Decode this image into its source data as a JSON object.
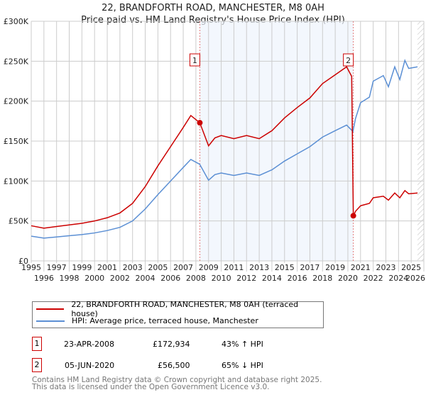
{
  "chart_data": {
    "type": "line",
    "title": "22, BRANDFORTH ROAD, MANCHESTER, M8 0AH",
    "subtitle": "Price paid vs. HM Land Registry's House Price Index (HPI)",
    "xlim": [
      1995,
      2026
    ],
    "ylim": [
      0,
      300000
    ],
    "x_ticks": [
      "1995",
      "1996",
      "1997",
      "1998",
      "1999",
      "2000",
      "2001",
      "2002",
      "2003",
      "2004",
      "2005",
      "2006",
      "2007",
      "2008",
      "2009",
      "2010",
      "2011",
      "2012",
      "2013",
      "2014",
      "2015",
      "2016",
      "2017",
      "2018",
      "2019",
      "2020",
      "2021",
      "2022",
      "2023",
      "2024",
      "2025",
      "2026"
    ],
    "y_ticks": [
      {
        "v": 0,
        "l": "£0"
      },
      {
        "v": 50000,
        "l": "£50K"
      },
      {
        "v": 100000,
        "l": "£100K"
      },
      {
        "v": 150000,
        "l": "£150K"
      },
      {
        "v": 200000,
        "l": "£200K"
      },
      {
        "v": 250000,
        "l": "£250K"
      },
      {
        "v": 300000,
        "l": "£300K"
      }
    ],
    "grid": true,
    "series": [
      {
        "name": "22, BRANDFORTH ROAD, MANCHESTER, M8 0AH (terraced house)",
        "color": "#cc0000",
        "x": [
          1995,
          1996,
          1997,
          1998,
          1999,
          2000,
          2001,
          2002,
          2003,
          2004,
          2005,
          2006,
          2007,
          2007.6,
          2008.31,
          2009,
          2009.5,
          2010,
          2011,
          2012,
          2013,
          2014,
          2015,
          2016,
          2017,
          2018,
          2019,
          2019.9,
          2020.3,
          2020.43,
          2020.6,
          2021,
          2021.7,
          2022,
          2022.8,
          2023.2,
          2023.7,
          2024.1,
          2024.5,
          2024.8,
          2025.5
        ],
        "y": [
          44000,
          41000,
          43000,
          45000,
          47000,
          50000,
          54000,
          60000,
          72000,
          93000,
          119000,
          143000,
          167000,
          182000,
          172934,
          144000,
          154000,
          157000,
          153000,
          157000,
          153000,
          163000,
          179000,
          192000,
          204000,
          222000,
          233000,
          243000,
          231000,
          56500,
          62000,
          69000,
          72000,
          79000,
          81000,
          76000,
          85000,
          79000,
          88000,
          84000,
          85000
        ]
      },
      {
        "name": "HPI: Average price, terraced house, Manchester",
        "color": "#5b8fd4",
        "x": [
          1995,
          1996,
          1997,
          1998,
          1999,
          2000,
          2001,
          2002,
          2003,
          2004,
          2005,
          2006,
          2007,
          2007.6,
          2008.3,
          2009,
          2009.5,
          2010,
          2011,
          2012,
          2013,
          2014,
          2015,
          2016,
          2017,
          2018,
          2019,
          2019.9,
          2020.4,
          2020.6,
          2021,
          2021.7,
          2022,
          2022.8,
          2023.2,
          2023.7,
          2024.1,
          2024.5,
          2024.8,
          2025.5
        ],
        "y": [
          31000,
          28500,
          30000,
          31500,
          33000,
          35000,
          38000,
          42000,
          50000,
          65000,
          83000,
          100000,
          117000,
          127000,
          121000,
          101000,
          108000,
          110000,
          107000,
          110000,
          107000,
          114000,
          125000,
          134000,
          143000,
          155000,
          163000,
          170000,
          162000,
          178000,
          198000,
          205000,
          225000,
          232000,
          218000,
          243000,
          227000,
          251000,
          241000,
          243000
        ]
      }
    ],
    "annotations": [
      {
        "label": "1",
        "x": 2008.31,
        "y": 172934
      },
      {
        "label": "2",
        "x": 2020.43,
        "y": 56500
      }
    ],
    "shaded_range": [
      2008.31,
      2020.43
    ],
    "forecast_hatch_from": 2025.5,
    "legend_placement": "bottom"
  },
  "transactions": [
    {
      "num": "1",
      "date": "23-APR-2008",
      "price": "£172,934",
      "hpi": "43% ↑ HPI"
    },
    {
      "num": "2",
      "date": "05-JUN-2020",
      "price": "£56,500",
      "hpi": "65% ↓ HPI"
    }
  ],
  "footer": [
    "Contains HM Land Registry data © Crown copyright and database right 2025.",
    "This data is licensed under the Open Government Licence v3.0."
  ]
}
